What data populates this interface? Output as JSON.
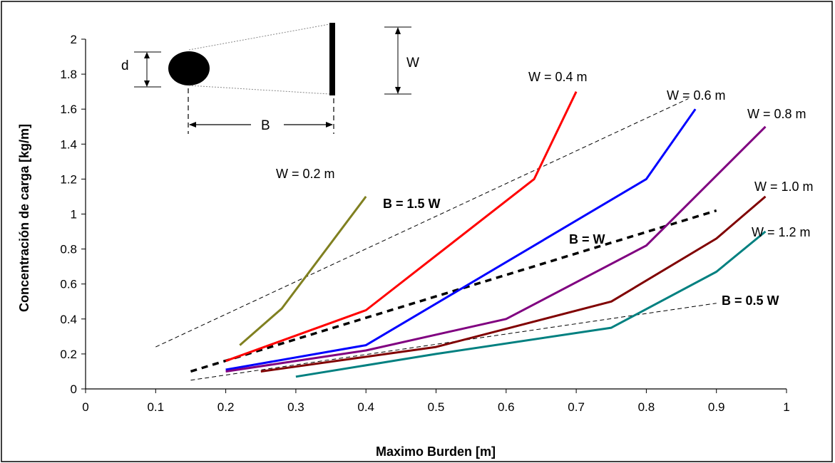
{
  "chart_data": {
    "type": "line",
    "xlabel": "Maximo Burden [m]",
    "ylabel": "Concentración de carga [kg/m]",
    "xlim": [
      0,
      1
    ],
    "ylim": [
      0,
      2
    ],
    "xticks": [
      "0",
      "0.1",
      "0.2",
      "0.3",
      "0.4",
      "0.5",
      "0.6",
      "0.7",
      "0.8",
      "0.9",
      "1"
    ],
    "yticks": [
      "0",
      "0.2",
      "0.4",
      "0.6",
      "0.8",
      "1",
      "1.2",
      "1.4",
      "1.6",
      "1.8",
      "2"
    ],
    "grid": false,
    "series": [
      {
        "name": "W = 0.2 m",
        "color": "#808020",
        "x": [
          0.22,
          0.28,
          0.4
        ],
        "y": [
          0.25,
          0.46,
          1.1
        ]
      },
      {
        "name": "W = 0.4 m",
        "color": "#ff0000",
        "x": [
          0.2,
          0.4,
          0.64,
          0.7
        ],
        "y": [
          0.16,
          0.45,
          1.2,
          1.7
        ]
      },
      {
        "name": "W = 0.6 m",
        "color": "#0000ff",
        "x": [
          0.2,
          0.4,
          0.8,
          0.87
        ],
        "y": [
          0.11,
          0.25,
          1.2,
          1.6
        ]
      },
      {
        "name": "W = 0.8 m",
        "color": "#800080",
        "x": [
          0.2,
          0.4,
          0.6,
          0.8,
          0.97
        ],
        "y": [
          0.1,
          0.22,
          0.4,
          0.82,
          1.5
        ]
      },
      {
        "name": "W = 1.0 m",
        "color": "#800000",
        "x": [
          0.25,
          0.5,
          0.75,
          0.9,
          0.97
        ],
        "y": [
          0.1,
          0.24,
          0.5,
          0.86,
          1.1
        ]
      },
      {
        "name": "W = 1.2 m",
        "color": "#008080",
        "x": [
          0.3,
          0.5,
          0.75,
          0.9,
          0.97
        ],
        "y": [
          0.07,
          0.2,
          0.35,
          0.67,
          0.9
        ]
      }
    ],
    "reference_lines": [
      {
        "name": "B = 1.5 W",
        "style": "thin-dashed",
        "x": [
          0.1,
          0.86
        ],
        "y": [
          0.24,
          1.66
        ]
      },
      {
        "name": "B = W",
        "style": "thick-dashed",
        "x": [
          0.15,
          0.9
        ],
        "y": [
          0.1,
          1.02
        ]
      },
      {
        "name": "B = 0.5 W",
        "style": "thin-dashed",
        "x": [
          0.15,
          0.9
        ],
        "y": [
          0.05,
          0.49
        ]
      }
    ],
    "inset": {
      "d_label": "d",
      "w_label": "W",
      "b_label": "B"
    }
  }
}
